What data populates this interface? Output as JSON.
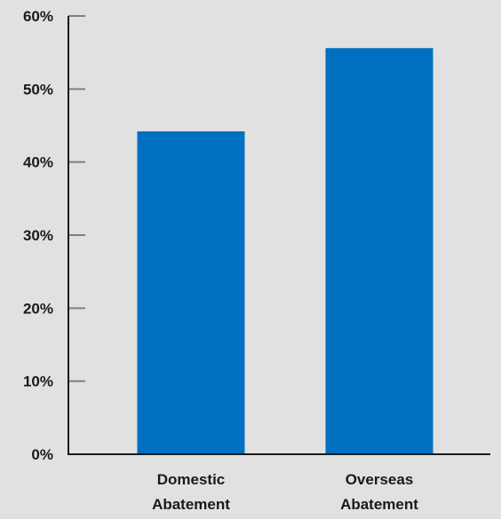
{
  "chart_data": {
    "type": "bar",
    "categories": [
      [
        "Domestic",
        "Abatement"
      ],
      [
        "Overseas",
        "Abatement"
      ]
    ],
    "values": [
      44.2,
      55.6
    ],
    "ylim": [
      0,
      60
    ],
    "yticks": [
      0,
      10,
      20,
      30,
      40,
      50,
      60
    ],
    "ytick_labels": [
      "0%",
      "10%",
      "20%",
      "30%",
      "40%",
      "50%",
      "60%"
    ],
    "grid": false,
    "colors": {
      "bar": "#0070c0",
      "axis": "#1a1a1a",
      "tick": "#7f7f7f",
      "background": "#e1e1e1"
    }
  }
}
